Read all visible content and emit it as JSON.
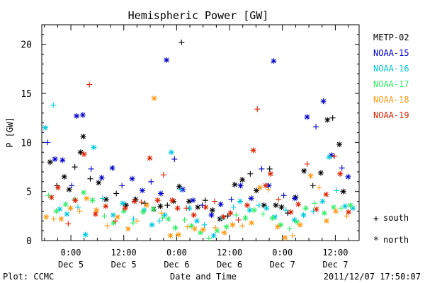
{
  "chart_data": {
    "type": "scatter",
    "title": "Hemispheric Power [GW]",
    "xlabel": "Date and Time",
    "ylabel": "P [GW]",
    "ylim": [
      0,
      22
    ],
    "yticks": [
      0,
      5,
      10,
      15,
      20
    ],
    "xticks": [
      {
        "t": 0,
        "line1": "0:00",
        "line2": "Dec 5"
      },
      {
        "t": 12,
        "line1": "12:00",
        "line2": "Dec 5"
      },
      {
        "t": 24,
        "line1": "0:00",
        "line2": "Dec 6"
      },
      {
        "t": 36,
        "line1": "12:00",
        "line2": "Dec 6"
      },
      {
        "t": 48,
        "line1": "0:00",
        "line2": "Dec 7"
      },
      {
        "t": 60,
        "line1": "12:00",
        "line2": "Dec 7"
      }
    ],
    "xlim": [
      -6.6,
      65.4
    ],
    "legend_position": "right",
    "series": [
      {
        "name": "METP-02",
        "color": "#000000",
        "values": [
          [
            -4.7,
            8.0
          ],
          [
            -3.2,
            5.6
          ],
          [
            -1.5,
            6.5
          ],
          [
            -0.4,
            5.2
          ],
          [
            0.9,
            7.5
          ],
          [
            2.2,
            9.0
          ],
          [
            2.8,
            10.6
          ],
          [
            4.4,
            6.3
          ],
          [
            6.3,
            5.9
          ],
          [
            8.0,
            4.2
          ],
          [
            10.3,
            4.8
          ],
          [
            12.5,
            3.6
          ],
          [
            14.7,
            4.2
          ],
          [
            16.8,
            3.8
          ],
          [
            18.8,
            3.2
          ],
          [
            20.3,
            3.5
          ],
          [
            21.9,
            3.6
          ],
          [
            23.3,
            4.0
          ],
          [
            24.6,
            5.5
          ],
          [
            25.1,
            20.2
          ],
          [
            26.8,
            4.0
          ],
          [
            28.8,
            3.4
          ],
          [
            30.5,
            4.1
          ],
          [
            32.1,
            3.1
          ],
          [
            33.8,
            2.2
          ],
          [
            35.6,
            2.5
          ],
          [
            37.2,
            5.7
          ],
          [
            38.9,
            6.2
          ],
          [
            40.7,
            6.8
          ],
          [
            42.1,
            5.1
          ],
          [
            43.8,
            3.6
          ],
          [
            45.1,
            7.3
          ],
          [
            46.5,
            3.6
          ],
          [
            47.8,
            3.4
          ],
          [
            49.2,
            2.8
          ],
          [
            51.0,
            4.4
          ],
          [
            52.9,
            7.1
          ],
          [
            54.9,
            5.6
          ],
          [
            56.7,
            6.9
          ],
          [
            58.2,
            12.3
          ],
          [
            59.4,
            12.5
          ],
          [
            60.9,
            9.8
          ],
          [
            61.8,
            5.0
          ]
        ]
      },
      {
        "name": "NOAA-15",
        "color": "#0000cc",
        "values": [
          [
            -5.3,
            10.0
          ],
          [
            -3.6,
            8.3
          ],
          [
            -1.9,
            8.2
          ],
          [
            0.2,
            5.6
          ],
          [
            1.3,
            12.7
          ],
          [
            2.7,
            12.8
          ],
          [
            4.6,
            7.3
          ],
          [
            7.0,
            6.4
          ],
          [
            9.4,
            7.4
          ],
          [
            11.6,
            5.6
          ],
          [
            13.9,
            6.3
          ],
          [
            16.2,
            5.1
          ],
          [
            18.2,
            6.0
          ],
          [
            20.4,
            4.8
          ],
          [
            21.7,
            18.4
          ],
          [
            23.5,
            8.3
          ],
          [
            25.4,
            5.2
          ],
          [
            27.7,
            4.1
          ],
          [
            29.8,
            3.6
          ],
          [
            31.9,
            2.6
          ],
          [
            34.0,
            3.7
          ],
          [
            36.4,
            4.2
          ],
          [
            38.5,
            5.6
          ],
          [
            40.9,
            4.3
          ],
          [
            43.3,
            7.3
          ],
          [
            44.9,
            5.6
          ],
          [
            46.0,
            18.3
          ],
          [
            48.3,
            4.6
          ],
          [
            50.8,
            4.3
          ],
          [
            53.6,
            12.6
          ],
          [
            55.6,
            11.6
          ],
          [
            57.3,
            14.2
          ],
          [
            59.1,
            8.7
          ],
          [
            61.5,
            7.4
          ],
          [
            62.9,
            6.5
          ]
        ]
      },
      {
        "name": "NOAA-16",
        "color": "#00c8dc",
        "values": [
          [
            -5.8,
            11.5
          ],
          [
            -4.0,
            13.8
          ],
          [
            -2.5,
            3.2
          ],
          [
            -0.9,
            2.7
          ],
          [
            1.6,
            3.4
          ],
          [
            3.3,
            0.6
          ],
          [
            5.2,
            9.5
          ],
          [
            7.2,
            4.3
          ],
          [
            9.6,
            2.6
          ],
          [
            11.8,
            3.8
          ],
          [
            14.2,
            2.2
          ],
          [
            16.6,
            3.1
          ],
          [
            18.4,
            1.6
          ],
          [
            20.1,
            2.0
          ],
          [
            21.3,
            2.6
          ],
          [
            22.8,
            9.0
          ],
          [
            24.8,
            5.2
          ],
          [
            26.9,
            3.3
          ],
          [
            28.6,
            2.0
          ],
          [
            30.3,
            1.6
          ],
          [
            32.4,
            0.5
          ],
          [
            34.4,
            2.3
          ],
          [
            36.9,
            3.4
          ],
          [
            38.4,
            4.0
          ],
          [
            40.6,
            3.1
          ],
          [
            42.7,
            3.6
          ],
          [
            44.4,
            3.3
          ],
          [
            46.3,
            2.4
          ],
          [
            48.8,
            3.1
          ],
          [
            50.7,
            2.1
          ],
          [
            52.8,
            2.6
          ],
          [
            55.0,
            3.0
          ],
          [
            57.1,
            4.0
          ],
          [
            58.6,
            8.5
          ],
          [
            60.3,
            5.1
          ],
          [
            62.2,
            3.5
          ],
          [
            64.0,
            3.3
          ]
        ]
      },
      {
        "name": "NOAA-17",
        "color": "#33ee66",
        "values": [
          [
            -5.1,
            4.6
          ],
          [
            -3.3,
            3.0
          ],
          [
            -1.2,
            3.7
          ],
          [
            0.8,
            4.2
          ],
          [
            2.9,
            4.9
          ],
          [
            4.9,
            4.1
          ],
          [
            7.6,
            2.5
          ],
          [
            9.7,
            1.8
          ],
          [
            12.0,
            3.0
          ],
          [
            14.1,
            1.8
          ],
          [
            16.4,
            2.9
          ],
          [
            18.7,
            3.2
          ],
          [
            20.8,
            2.3
          ],
          [
            22.1,
            2.2
          ],
          [
            23.7,
            1.3
          ],
          [
            25.8,
            2.1
          ],
          [
            27.4,
            1.5
          ],
          [
            29.4,
            0.8
          ],
          [
            31.3,
            0.2
          ],
          [
            33.2,
            1.0
          ],
          [
            35.3,
            1.4
          ],
          [
            37.5,
            2.6
          ],
          [
            39.6,
            2.3
          ],
          [
            41.6,
            3.1
          ],
          [
            43.6,
            2.7
          ],
          [
            45.7,
            2.3
          ],
          [
            47.6,
            1.6
          ],
          [
            49.6,
            1.2
          ],
          [
            51.3,
            1.9
          ],
          [
            53.3,
            3.3
          ],
          [
            55.3,
            3.8
          ],
          [
            57.5,
            2.8
          ],
          [
            59.6,
            3.4
          ],
          [
            61.3,
            3.3
          ],
          [
            63.4,
            3.6
          ]
        ]
      },
      {
        "name": "NOAA-18",
        "color": "#ff9911",
        "values": [
          [
            -5.6,
            2.4
          ],
          [
            -3.9,
            2.2
          ],
          [
            -2.2,
            2.2
          ],
          [
            -0.1,
            3.3
          ],
          [
            2.0,
            3.0
          ],
          [
            3.6,
            4.3
          ],
          [
            5.8,
            3.1
          ],
          [
            8.3,
            1.5
          ],
          [
            10.6,
            2.4
          ],
          [
            13.0,
            1.2
          ],
          [
            15.0,
            2.0
          ],
          [
            17.2,
            3.6
          ],
          [
            18.9,
            14.5
          ],
          [
            20.6,
            2.8
          ],
          [
            22.6,
            0.5
          ],
          [
            24.4,
            0.6
          ],
          [
            26.5,
            1.4
          ],
          [
            28.1,
            1.2
          ],
          [
            30.0,
            1.1
          ],
          [
            32.8,
            1.3
          ],
          [
            34.8,
            0.8
          ],
          [
            36.7,
            1.6
          ],
          [
            38.9,
            1.5
          ],
          [
            41.0,
            1.8
          ],
          [
            42.9,
            5.4
          ],
          [
            44.8,
            5.2
          ],
          [
            46.9,
            1.4
          ],
          [
            48.6,
            0.3
          ],
          [
            50.3,
            0.5
          ],
          [
            52.0,
            1.6
          ],
          [
            54.4,
            6.6
          ],
          [
            56.3,
            5.4
          ],
          [
            58.0,
            2.0
          ],
          [
            60.1,
            3.0
          ],
          [
            62.6,
            2.5
          ]
        ]
      },
      {
        "name": "NOAA-19",
        "color": "#dd2200",
        "values": [
          [
            -4.4,
            4.4
          ],
          [
            -2.9,
            5.4
          ],
          [
            -0.6,
            1.7
          ],
          [
            1.0,
            4.1
          ],
          [
            3.0,
            8.8
          ],
          [
            4.2,
            15.9
          ],
          [
            5.6,
            2.7
          ],
          [
            7.9,
            3.5
          ],
          [
            10.1,
            2.0
          ],
          [
            12.3,
            3.3
          ],
          [
            14.4,
            4.0
          ],
          [
            16.0,
            3.9
          ],
          [
            17.9,
            8.4
          ],
          [
            19.7,
            4.1
          ],
          [
            21.0,
            6.7
          ],
          [
            23.0,
            4.1
          ],
          [
            24.2,
            3.3
          ],
          [
            26.2,
            3.3
          ],
          [
            27.9,
            2.6
          ],
          [
            30.6,
            3.4
          ],
          [
            32.6,
            4.0
          ],
          [
            34.6,
            2.4
          ],
          [
            36.2,
            2.8
          ],
          [
            38.0,
            2.1
          ],
          [
            40.0,
            3.6
          ],
          [
            41.4,
            9.2
          ],
          [
            42.3,
            13.4
          ],
          [
            44.2,
            5.6
          ],
          [
            45.3,
            6.8
          ],
          [
            47.1,
            4.2
          ],
          [
            49.9,
            2.9
          ],
          [
            51.6,
            3.7
          ],
          [
            53.6,
            7.8
          ],
          [
            55.7,
            3.2
          ],
          [
            57.9,
            4.7
          ],
          [
            59.8,
            8.6
          ],
          [
            61.1,
            6.8
          ],
          [
            63.0,
            2.9
          ]
        ]
      }
    ],
    "markers": {
      "south_symbol": "+",
      "south_label": "south",
      "north_symbol": "*",
      "north_label": "north"
    }
  },
  "footer": {
    "left": "Plot: CCMC",
    "right": "2011/12/07 17:50:07"
  }
}
